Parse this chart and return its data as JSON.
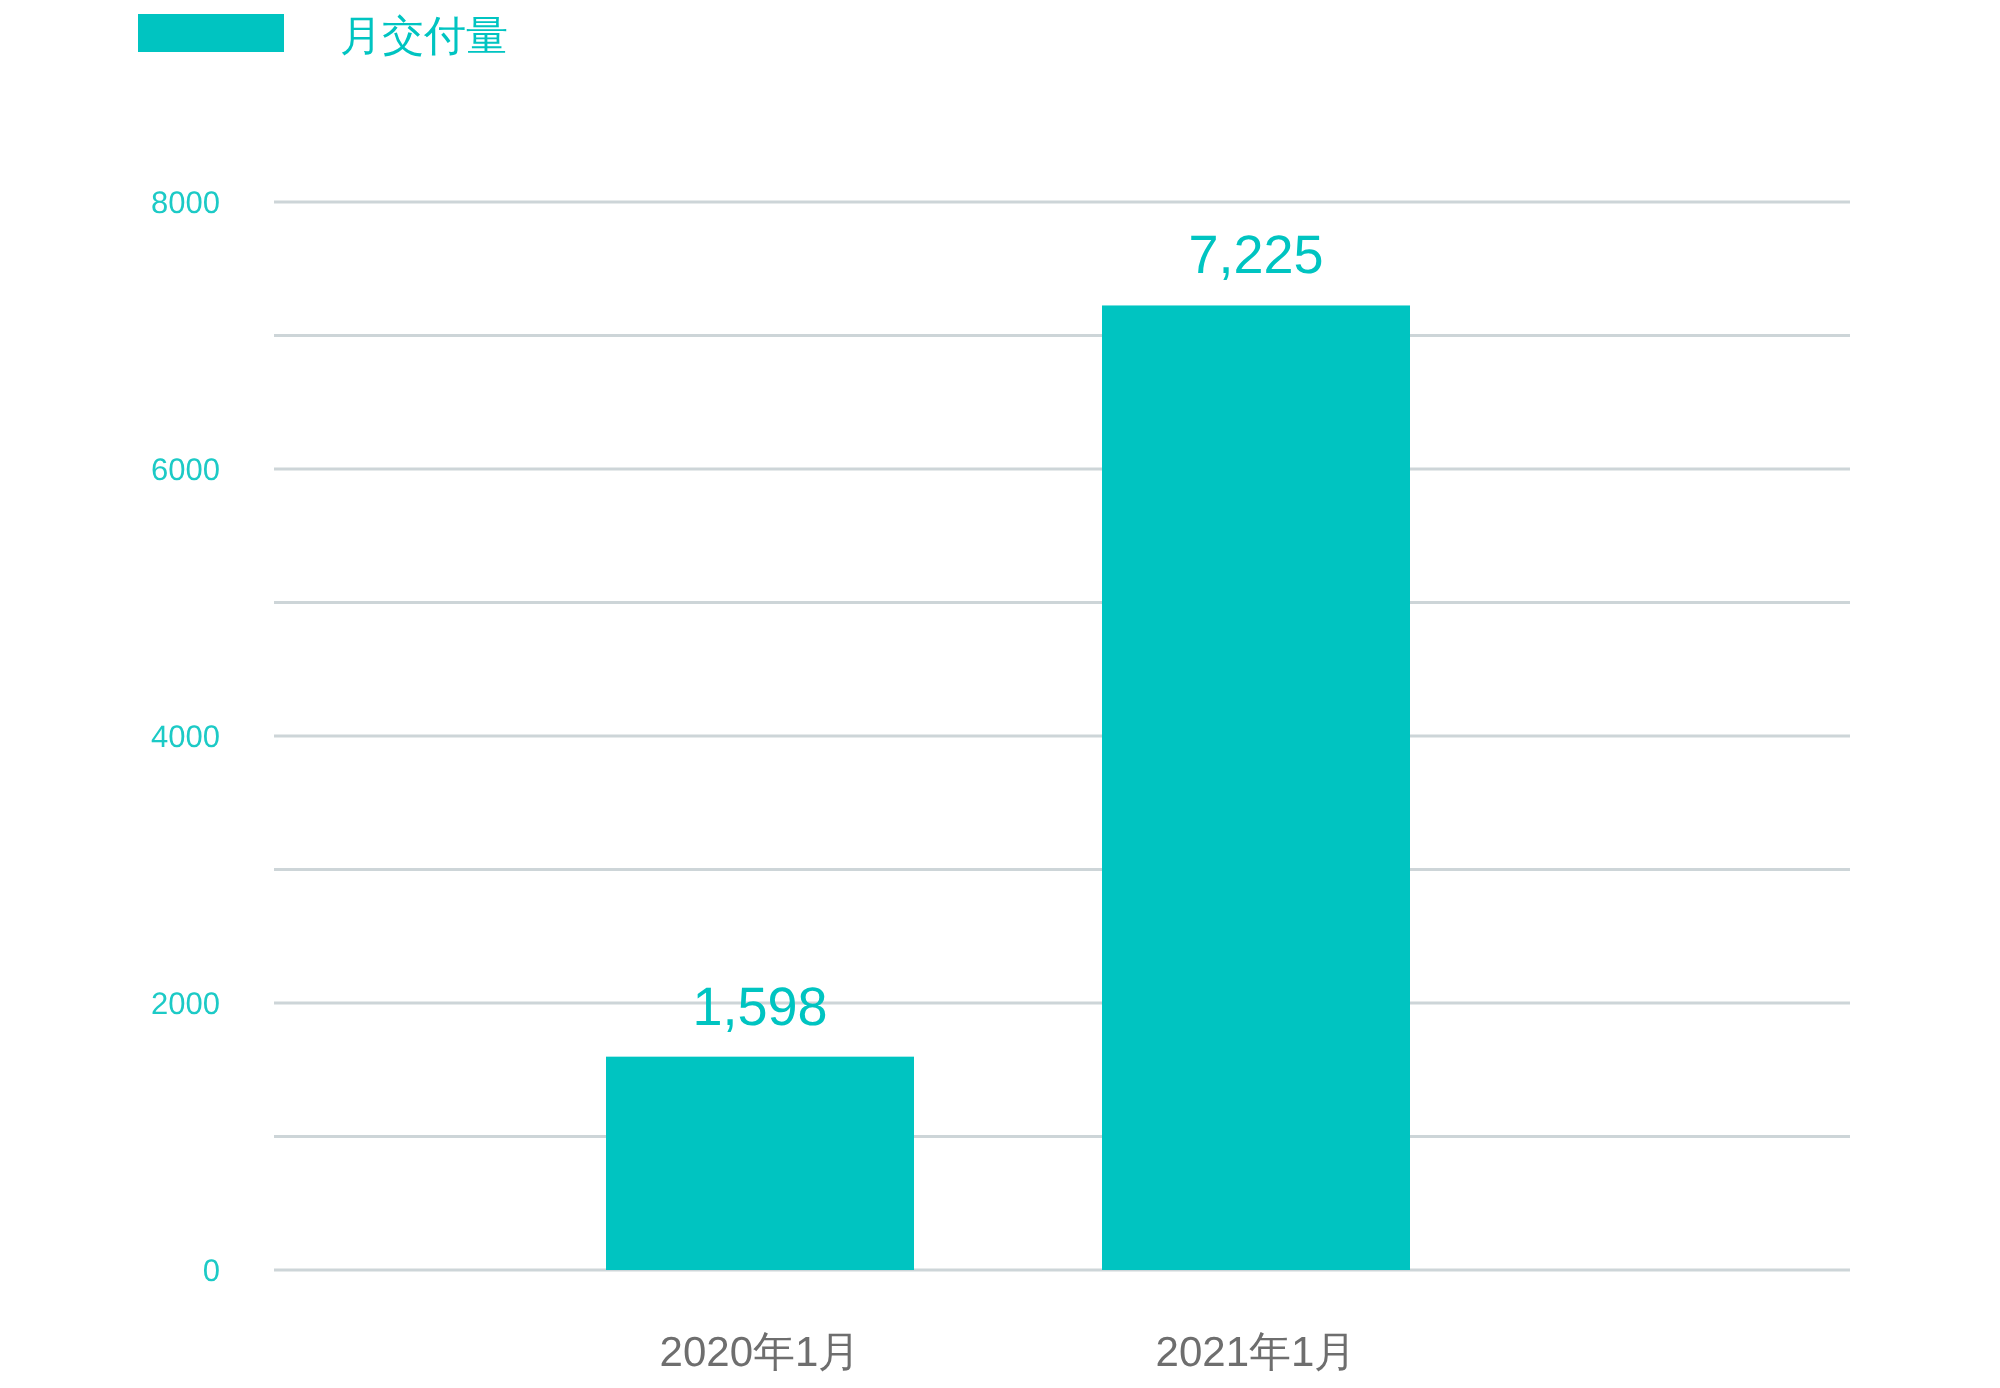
{
  "chart_data": {
    "type": "bar",
    "categories": [
      "2020年1月",
      "2021年1月"
    ],
    "series": [
      {
        "name": "月交付量",
        "color": "#00c4c1",
        "values": [
          1598,
          7225
        ],
        "value_labels": [
          "1,598",
          "7,225"
        ]
      }
    ],
    "ylim": [
      0,
      8000
    ],
    "yticks": [
      0,
      {
        "value": 1000,
        "label": null
      },
      2000,
      {
        "value": 3000,
        "label": null
      },
      4000,
      {
        "value": 5000,
        "label": null
      },
      6000,
      {
        "value": 7000,
        "label": null
      },
      8000
    ],
    "grid": "y",
    "legend": "top left"
  }
}
